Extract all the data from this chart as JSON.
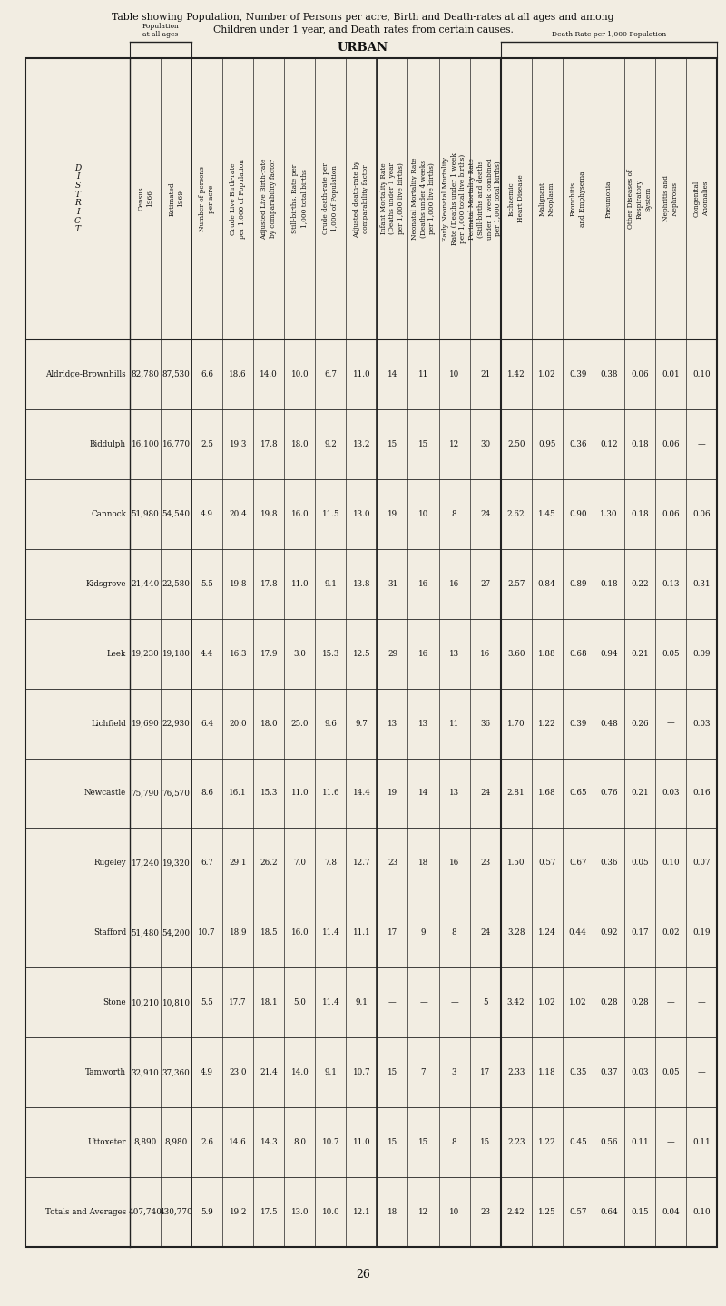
{
  "title_line1": "Table showing Population, Number of Persons per acre, Birth and Death-rates at all ages and among",
  "title_line2": "Children under 1 year, and Death rates from certain causes.",
  "subtitle": "URBAN",
  "page_number": "26",
  "districts": [
    "Aldridge-Brownhills",
    "Biddulph",
    "Cannock",
    "Kidsgrove",
    "Leek",
    "Lichfield",
    "Newcastle",
    "Rugeley",
    "Stafford",
    "Stone",
    "Tamworth",
    "Uttoxeter",
    "Totals and Averages"
  ],
  "census_1966": [
    "82,780",
    "16,100",
    "51,980",
    "21,440",
    "19,230",
    "19,690",
    "75,790",
    "17,240",
    "51,480",
    "10,210",
    "32,910",
    "8,890",
    "407,740"
  ],
  "estimated_1969": [
    "87,530",
    "16,770",
    "54,540",
    "22,580",
    "19,180",
    "22,930",
    "76,570",
    "19,320",
    "54,200",
    "10,810",
    "37,360",
    "8,980",
    "430,770"
  ],
  "persons_per_acre": [
    "6.6",
    "2.5",
    "4.9",
    "5.5",
    "4.4",
    "6.4",
    "8.6",
    "6.7",
    "10.7",
    "5.5",
    "4.9",
    "2.6",
    "5.9"
  ],
  "crude_live_birth_rate": [
    "18.6",
    "19.3",
    "20.4",
    "19.8",
    "16.3",
    "20.0",
    "16.1",
    "29.1",
    "18.9",
    "17.7",
    "23.0",
    "14.6",
    "19.2"
  ],
  "adjusted_live_birth_rate": [
    "14.0",
    "17.8",
    "19.8",
    "17.8",
    "17.9",
    "18.0",
    "15.3",
    "26.2",
    "18.5",
    "18.1",
    "21.4",
    "14.3",
    "17.5"
  ],
  "stillbirths_rate": [
    "10.0",
    "18.0",
    "16.0",
    "11.0",
    "3.0",
    "25.0",
    "11.0",
    "7.0",
    "16.0",
    "5.0",
    "14.0",
    "8.0",
    "13.0"
  ],
  "crude_death_rate": [
    "6.7",
    "9.2",
    "11.5",
    "9.1",
    "15.3",
    "9.6",
    "11.6",
    "7.8",
    "11.4",
    "11.4",
    "9.1",
    "10.7",
    "10.0"
  ],
  "adjusted_death_rate": [
    "11.0",
    "13.2",
    "13.0",
    "13.8",
    "12.5",
    "9.7",
    "14.4",
    "12.7",
    "11.1",
    "9.1",
    "10.7",
    "11.0",
    "12.1"
  ],
  "infant_mortality_rate": [
    "14",
    "15",
    "19",
    "31",
    "29",
    "13",
    "19",
    "23",
    "17",
    "—",
    "15",
    "15",
    "18"
  ],
  "neonatal_mortality_rate": [
    "11",
    "15",
    "10",
    "16",
    "16",
    "13",
    "14",
    "18",
    "9",
    "—",
    "7",
    "15",
    "12"
  ],
  "early_neonatal_mortality_rate": [
    "10",
    "12",
    "8",
    "16",
    "13",
    "11",
    "13",
    "16",
    "8",
    "—",
    "3",
    "8",
    "10"
  ],
  "perinatal_mortality_rate": [
    "21",
    "30",
    "24",
    "27",
    "16",
    "36",
    "24",
    "23",
    "24",
    "5",
    "17",
    "15",
    "23"
  ],
  "ischaemic_heart_disease": [
    "1.42",
    "2.50",
    "2.62",
    "2.57",
    "3.60",
    "1.70",
    "2.81",
    "1.50",
    "3.28",
    "3.42",
    "2.33",
    "2.23",
    "2.42"
  ],
  "malignant_neoplasm": [
    "1.02",
    "0.95",
    "1.45",
    "0.84",
    "1.88",
    "1.22",
    "1.68",
    "0.57",
    "1.24",
    "1.02",
    "1.18",
    "1.22",
    "1.25"
  ],
  "bronchitis_emphysema": [
    "0.39",
    "0.36",
    "0.90",
    "0.89",
    "0.68",
    "0.39",
    "0.65",
    "0.67",
    "0.44",
    "1.02",
    "0.35",
    "0.45",
    "0.57"
  ],
  "pneumonia": [
    "0.38",
    "0.12",
    "1.30",
    "0.18",
    "0.94",
    "0.48",
    "0.76",
    "0.36",
    "0.92",
    "0.28",
    "0.37",
    "0.56",
    "0.64"
  ],
  "other_respiratory": [
    "0.06",
    "0.18",
    "0.18",
    "0.22",
    "0.21",
    "0.26",
    "0.21",
    "0.05",
    "0.17",
    "0.28",
    "0.03",
    "0.11",
    "0.15"
  ],
  "nephritis_nephrosis": [
    "0.01",
    "0.06",
    "0.06",
    "0.13",
    "0.05",
    "—",
    "0.03",
    "0.10",
    "0.02",
    "—",
    "0.05",
    "—",
    "0.04"
  ],
  "congenital_anomalies": [
    "0.10",
    "—",
    "0.06",
    "0.31",
    "0.09",
    "0.03",
    "0.16",
    "0.07",
    "0.19",
    "—",
    "—",
    "0.11",
    "0.10"
  ],
  "bg_color": "#f2ede2",
  "line_color": "#222222",
  "text_color": "#111111"
}
